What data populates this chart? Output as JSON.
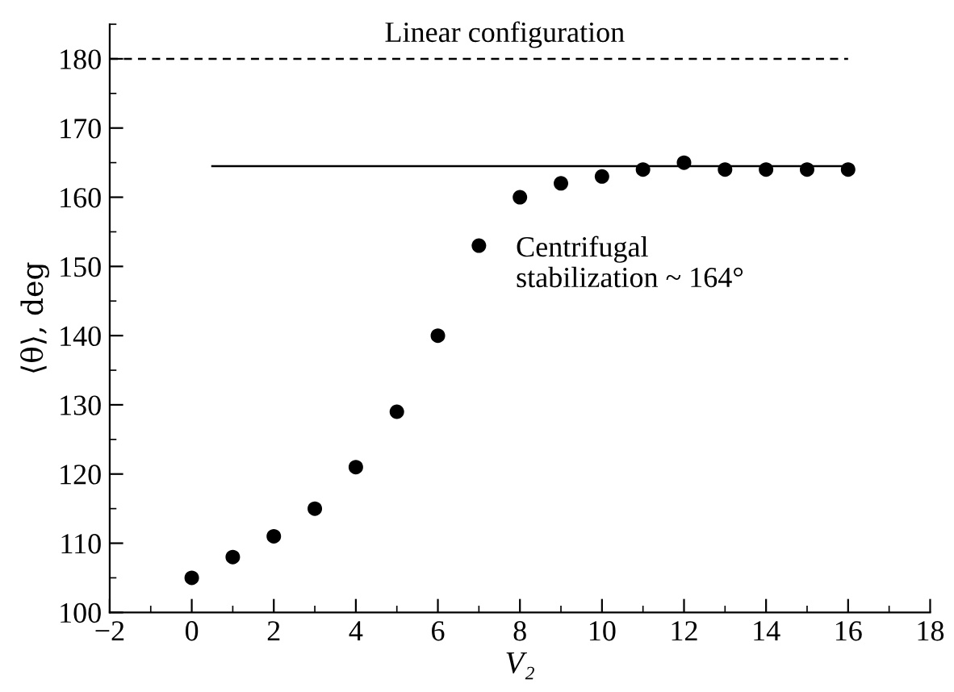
{
  "chart_data": {
    "type": "scatter",
    "xlabel": "V₂",
    "ylabel": "⟨θ⟩, deg",
    "series": [
      {
        "color": "#000000",
        "marker": "circle",
        "x": [
          0,
          1,
          2,
          3,
          4,
          5,
          6,
          7,
          8,
          9,
          10,
          11,
          12,
          13,
          14,
          15,
          16
        ],
        "values": [
          105,
          108,
          111,
          115,
          121,
          129,
          140,
          153,
          160,
          162,
          163,
          164,
          165,
          164,
          164,
          164,
          164
        ]
      },
      {
        "type": "line",
        "color": "#000000",
        "line_style": "solid",
        "marker": "none",
        "x": [
          0.5,
          16
        ],
        "values": [
          164.5,
          164.5
        ]
      },
      {
        "type": "line",
        "color": "#000000",
        "line_style": "dashed",
        "marker": "none",
        "x": [
          -2,
          16
        ],
        "values": [
          180,
          180
        ]
      }
    ],
    "annotations": [
      "Linear configuration",
      "Centrifugal\nstabilization ~ 164°"
    ],
    "xlim": [
      -2,
      18
    ],
    "xticks": [
      -2,
      0,
      2,
      4,
      6,
      8,
      10,
      12,
      14,
      16,
      18
    ],
    "ylim": [
      100,
      185
    ],
    "yticks": [
      100,
      110,
      120,
      130,
      140,
      150,
      160,
      170,
      180
    ],
    "grid": false,
    "legend": false
  }
}
